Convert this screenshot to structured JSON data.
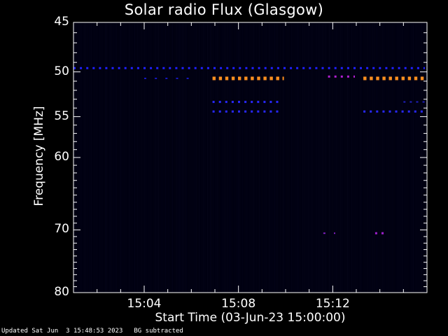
{
  "title": "Solar radio Flux (Glasgow)",
  "footer": {
    "updated": "Updated Sat Jun  3 15:48:53 2023",
    "note": "BG subtracted"
  },
  "chart_data": {
    "type": "heatmap",
    "title": "Solar radio Flux (Glasgow)",
    "xlabel": "Start Time (03-Jun-23 15:00:00)",
    "ylabel": "Frequency [MHz]",
    "x_unit": "minutes after 15:00",
    "xlim": [
      1.0,
      16.0
    ],
    "ylim": [
      45,
      80
    ],
    "y_scale": "log",
    "ytick_labels": [
      "45",
      "50",
      "55",
      "60",
      "70",
      "80"
    ],
    "yticks": [
      45,
      50,
      55,
      60,
      70,
      80
    ],
    "xticks": [
      4,
      8,
      12
    ],
    "xtick_labels": [
      "15:04",
      "15:08",
      "15:12"
    ],
    "background_color": "#000010",
    "features": [
      {
        "freq": 49.6,
        "t_start": 1.0,
        "t_end": 15.9,
        "color": "#2020ff",
        "pattern": "dashed",
        "level": "moderate"
      },
      {
        "freq": 50.7,
        "t_start": 4.0,
        "t_end": 6.2,
        "color": "#1818c0",
        "pattern": "sparse",
        "level": "weak"
      },
      {
        "freq": 50.7,
        "t_start": 6.9,
        "t_end": 9.9,
        "color": "#ff9020",
        "pattern": "dashed",
        "level": "strong"
      },
      {
        "freq": 50.5,
        "t_start": 11.8,
        "t_end": 12.9,
        "color": "#b020d0",
        "pattern": "dashed",
        "level": "moderate"
      },
      {
        "freq": 50.7,
        "t_start": 13.3,
        "t_end": 15.9,
        "color": "#ff9020",
        "pattern": "dashed",
        "level": "strong"
      },
      {
        "freq": 53.3,
        "t_start": 6.9,
        "t_end": 9.7,
        "color": "#2828ff",
        "pattern": "dashed",
        "level": "moderate"
      },
      {
        "freq": 54.4,
        "t_start": 6.9,
        "t_end": 9.7,
        "color": "#2828ff",
        "pattern": "dashed",
        "level": "moderate"
      },
      {
        "freq": 54.4,
        "t_start": 13.3,
        "t_end": 15.9,
        "color": "#2828ff",
        "pattern": "dashed",
        "level": "moderate"
      },
      {
        "freq": 53.3,
        "t_start": 15.0,
        "t_end": 15.9,
        "color": "#2020c0",
        "pattern": "dashed",
        "level": "weak"
      },
      {
        "freq": 70.5,
        "t_start": 11.6,
        "t_end": 12.1,
        "color": "#8020c0",
        "pattern": "sparse",
        "level": "weak"
      },
      {
        "freq": 70.5,
        "t_start": 13.8,
        "t_end": 14.3,
        "color": "#a020d0",
        "pattern": "dashed",
        "level": "moderate"
      }
    ]
  }
}
